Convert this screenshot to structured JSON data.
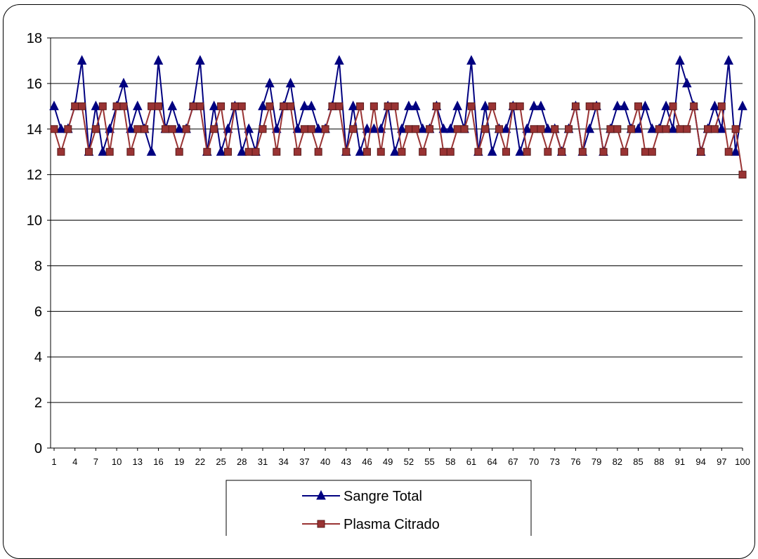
{
  "chart_data": {
    "type": "line",
    "title": "",
    "xlabel": "",
    "ylabel": "",
    "ylim": [
      0,
      18
    ],
    "yticks": [
      0,
      2,
      4,
      6,
      8,
      10,
      12,
      14,
      16,
      18
    ],
    "xlim": [
      1,
      100
    ],
    "xtick_labels": [
      "1",
      "4",
      "7",
      "10",
      "13",
      "16",
      "19",
      "22",
      "25",
      "28",
      "31",
      "34",
      "37",
      "40",
      "43",
      "46",
      "49",
      "52",
      "55",
      "58",
      "61",
      "64",
      "67",
      "70",
      "73",
      "76",
      "79",
      "82",
      "85",
      "88",
      "91",
      "94",
      "97",
      "100"
    ],
    "grid": "horizontal",
    "legend_position": "bottom",
    "series": [
      {
        "name": "Sangre Total",
        "color": "#000080",
        "marker": "triangle",
        "values": [
          15,
          14,
          14,
          15,
          17,
          13,
          15,
          13,
          14,
          15,
          16,
          14,
          15,
          14,
          13,
          17,
          14,
          15,
          14,
          14,
          15,
          17,
          13,
          15,
          13,
          14,
          15,
          13,
          14,
          13,
          15,
          16,
          14,
          15,
          16,
          14,
          15,
          15,
          14,
          14,
          15,
          17,
          13,
          15,
          13,
          14,
          14,
          14,
          15,
          13,
          14,
          15,
          15,
          14,
          14,
          15,
          14,
          14,
          15,
          14,
          17,
          13,
          15,
          13,
          14,
          14,
          15,
          13,
          14,
          15,
          15,
          14,
          14,
          13,
          14,
          15,
          13,
          14,
          15,
          13,
          14,
          15,
          15,
          14,
          14,
          15,
          14,
          14,
          15,
          14,
          17,
          16,
          15,
          13,
          14,
          15,
          14,
          17,
          13,
          15
        ]
      },
      {
        "name": "Plasma Citrado",
        "color": "#993333",
        "marker": "square",
        "values": [
          14,
          13,
          14,
          15,
          15,
          13,
          14,
          15,
          13,
          15,
          15,
          13,
          14,
          14,
          15,
          15,
          14,
          14,
          13,
          14,
          15,
          15,
          13,
          14,
          15,
          13,
          15,
          15,
          13,
          13,
          14,
          15,
          13,
          15,
          15,
          13,
          14,
          14,
          13,
          14,
          15,
          15,
          13,
          14,
          15,
          13,
          15,
          13,
          15,
          15,
          13,
          14,
          14,
          13,
          14,
          15,
          13,
          13,
          14,
          14,
          15,
          13,
          14,
          15,
          14,
          13,
          15,
          15,
          13,
          14,
          14,
          13,
          14,
          13,
          14,
          15,
          13,
          15,
          15,
          13,
          14,
          14,
          13,
          14,
          15,
          13,
          13,
          14,
          14,
          15,
          14,
          14,
          15,
          13,
          14,
          14,
          15,
          13,
          14,
          12
        ]
      }
    ]
  }
}
